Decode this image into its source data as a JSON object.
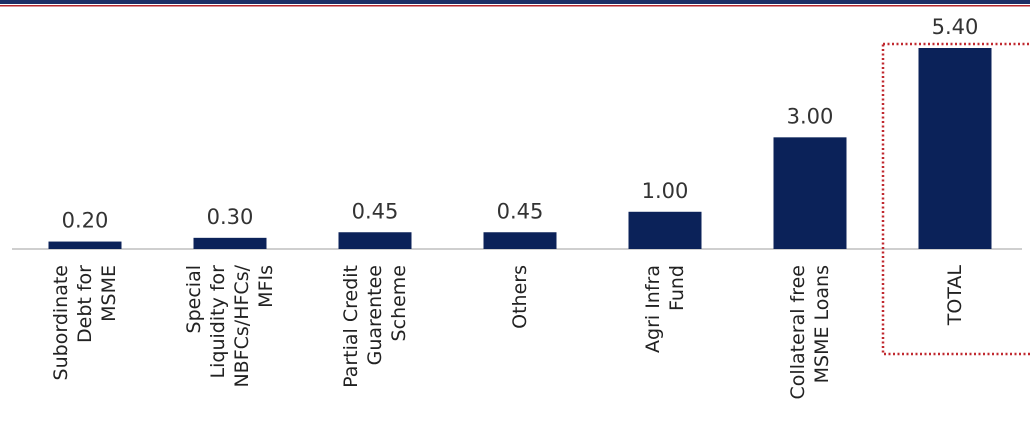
{
  "colors": {
    "bar": "#0b2259",
    "header_line_dark": "#1c2f66",
    "header_line_accent": "#b3272d",
    "highlight_box": "#c0292f",
    "axis": "#bfbfbf"
  },
  "chart_data": {
    "type": "bar",
    "title": "",
    "xlabel": "",
    "ylabel": "",
    "ylim": [
      0,
      5.4
    ],
    "grid": false,
    "legend": "none",
    "categories": [
      "Subordinate Debt for MSME",
      "Special Liquidity for NBFCs/HFCs/ MFIs",
      "Partial Credit Guarentee Scheme",
      "Others",
      "Agri Infra Fund",
      "Collateral free MSME Loans",
      "TOTAL"
    ],
    "category_lines": [
      [
        "Subordinate",
        "Debt for",
        "MSME"
      ],
      [
        "Special",
        "Liquidity for",
        "NBFCs/HFCs/",
        "MFIs"
      ],
      [
        "Partial Credit",
        "Guarentee",
        "Scheme"
      ],
      [
        "Others"
      ],
      [
        "Agri Infra",
        "Fund"
      ],
      [
        "Collateral free",
        "MSME Loans"
      ],
      [
        "TOTAL"
      ]
    ],
    "values": [
      0.2,
      0.3,
      0.45,
      0.45,
      1.0,
      3.0,
      5.4
    ],
    "value_labels": [
      "0.20",
      "0.30",
      "0.45",
      "0.45",
      "1.00",
      "3.00",
      "5.40"
    ],
    "highlighted_category": "TOTAL"
  }
}
